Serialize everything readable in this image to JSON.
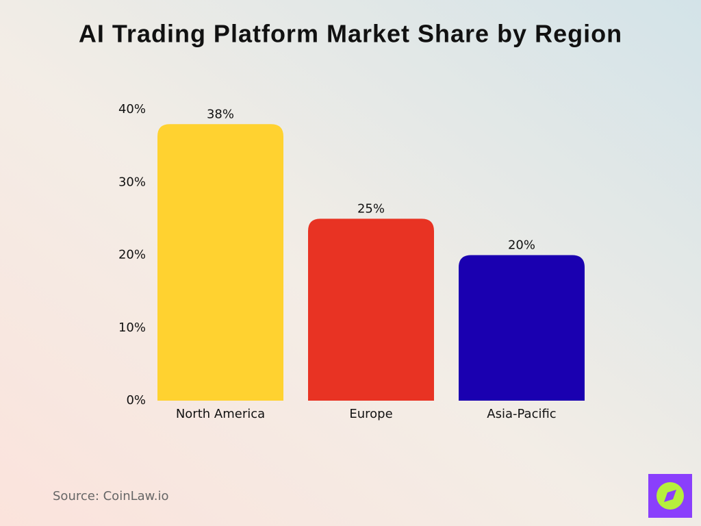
{
  "chart_data": {
    "type": "bar",
    "title": "AI Trading Platform Market Share by Region",
    "categories": [
      "North America",
      "Europe",
      "Asia-Pacific"
    ],
    "values": [
      38,
      25,
      20
    ],
    "value_labels": [
      "38%",
      "25%",
      "20%"
    ],
    "colors": [
      "#ffd230",
      "#e83323",
      "#1a00b0"
    ],
    "ylim": [
      0,
      40
    ],
    "yticks": [
      {
        "value": 0,
        "label": "0%"
      },
      {
        "value": 10,
        "label": "10%"
      },
      {
        "value": 20,
        "label": "20%"
      },
      {
        "value": 30,
        "label": "30%"
      },
      {
        "value": 40,
        "label": "40%"
      }
    ],
    "grid": false,
    "source": "Source: CoinLaw.io"
  }
}
